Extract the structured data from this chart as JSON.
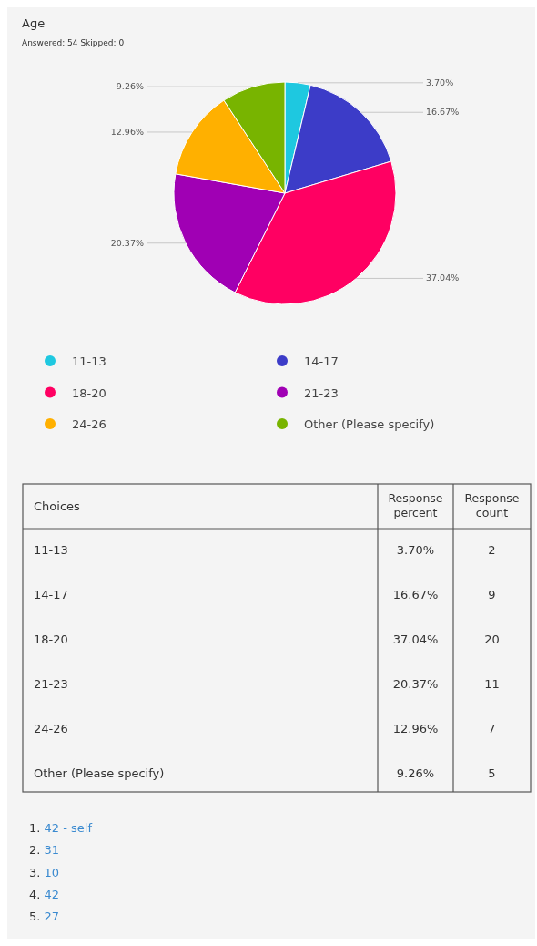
{
  "chart_data": {
    "type": "pie",
    "title": "Age",
    "subtitle": "Answered: 54 Skipped: 0",
    "categories": [
      "11-13",
      "14-17",
      "18-20",
      "21-23",
      "24-26",
      "Other (Please specify)"
    ],
    "values": [
      3.7,
      16.67,
      37.04,
      20.37,
      12.96,
      9.26
    ],
    "value_labels": [
      "3.70%",
      "16.67%",
      "37.04%",
      "20.37%",
      "12.96%",
      "9.26%"
    ],
    "colors": [
      "#1ec8e0",
      "#3c3cc8",
      "#ff0062",
      "#a000b4",
      "#ffb000",
      "#78b400"
    ],
    "legend": "bottom",
    "annotations": [
      "Choices",
      "Response percent",
      "Response count",
      "2",
      "9",
      "20",
      "11",
      "7",
      "5",
      "1. 42 - self",
      "2. 31",
      "3. 10",
      "4. 42",
      "5. 27"
    ]
  }
}
